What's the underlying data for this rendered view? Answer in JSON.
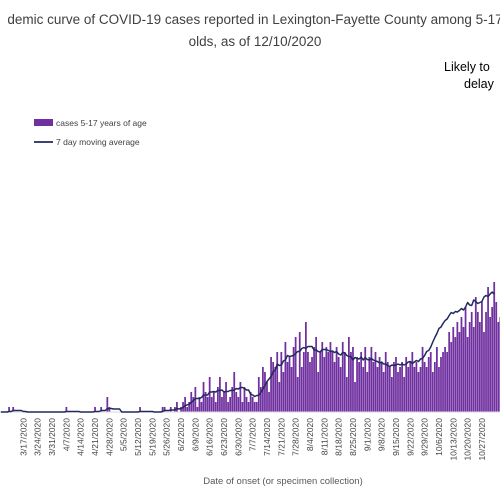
{
  "chart_data": {
    "type": "bar",
    "title_line1": "demic curve of COVID-19 cases reported in Lexington-Fayette County among 5-17",
    "title_line2": "olds, as of 12/10/2020",
    "annotation_line1": "Likely to",
    "annotation_line2": "delay",
    "xlabel": "Date of onset (or specimen collection)",
    "ylabel": "",
    "legend": {
      "placement": "upper-left",
      "bar_label": "cases 5-17 years of age",
      "line_label": "7 day moving average"
    },
    "colors": {
      "bar": "#7030a0",
      "line": "#1f2a5c",
      "axis": "#d9d9d9"
    },
    "ylim": [
      0,
      30
    ],
    "tick_labels": [
      "3/17/2020",
      "3/24/2020",
      "3/31/2020",
      "4/7/2020",
      "4/14/2020",
      "4/21/2020",
      "4/28/2020",
      "5/5/2020",
      "5/12/2020",
      "5/19/2020",
      "5/26/2020",
      "6/2/2020",
      "6/9/2020",
      "6/16/2020",
      "6/23/2020",
      "6/30/2020",
      "7/7/2020",
      "7/14/2020",
      "7/21/2020",
      "7/28/2020",
      "8/4/2020",
      "8/11/2020",
      "8/18/2020",
      "8/25/2020",
      "9/1/2020",
      "9/8/2020",
      "9/15/2020",
      "9/22/2020",
      "9/29/2020",
      "10/6/2020",
      "10/13/2020",
      "10/20/2020",
      "10/27/2020"
    ],
    "series": [
      {
        "name": "cases 5-17 years of age",
        "kind": "bar",
        "values": [
          0,
          0,
          0,
          0,
          1,
          0,
          1,
          0,
          0,
          0,
          0,
          0,
          0,
          0,
          0,
          0,
          0,
          0,
          0,
          0,
          0,
          0,
          0,
          0,
          0,
          0,
          0,
          0,
          0,
          0,
          0,
          0,
          1,
          0,
          0,
          0,
          0,
          0,
          0,
          0,
          0,
          0,
          0,
          0,
          0,
          0,
          1,
          0,
          0,
          1,
          0,
          0,
          3,
          1,
          0,
          0,
          0,
          0,
          0,
          0,
          0,
          0,
          0,
          0,
          0,
          0,
          0,
          0,
          1,
          0,
          0,
          0,
          0,
          0,
          0,
          0,
          0,
          0,
          0,
          1,
          1,
          0,
          0,
          1,
          0,
          1,
          2,
          0,
          1,
          2,
          3,
          1,
          2,
          4,
          3,
          5,
          1,
          3,
          2,
          6,
          4,
          3,
          7,
          3,
          4,
          2,
          5,
          7,
          3,
          4,
          6,
          2,
          3,
          5,
          8,
          4,
          3,
          6,
          2,
          5,
          3,
          2,
          4,
          3,
          2,
          2,
          7,
          5,
          9,
          8,
          6,
          4,
          11,
          10,
          9,
          12,
          6,
          12,
          8,
          14,
          10,
          11,
          9,
          13,
          15,
          7,
          16,
          9,
          12,
          18,
          12,
          10,
          11,
          13,
          15,
          8,
          12,
          14,
          11,
          13,
          12,
          14,
          12,
          10,
          13,
          11,
          9,
          14,
          12,
          7,
          15,
          12,
          13,
          6,
          11,
          10,
          12,
          9,
          13,
          8,
          11,
          13,
          10,
          12,
          9,
          11,
          10,
          8,
          12,
          10,
          9,
          7,
          10,
          11,
          8,
          9,
          10,
          7,
          11,
          9,
          10,
          12,
          9,
          10,
          8,
          9,
          13,
          10,
          9,
          11,
          12,
          8,
          10,
          13,
          9,
          11,
          12,
          13,
          12,
          16,
          14,
          17,
          15,
          18,
          16,
          19,
          17,
          21,
          15,
          18,
          20,
          17,
          23,
          20,
          18,
          22,
          16,
          20,
          25,
          19,
          21,
          26,
          22,
          18,
          19,
          24,
          27,
          23,
          21,
          26,
          24,
          20
        ]
      },
      {
        "name": "7 day moving average",
        "kind": "line",
        "values": [
          0,
          0,
          0,
          0,
          0.1,
          0.1,
          0.3,
          0.3,
          0.3,
          0.3,
          0.3,
          0.1,
          0.1,
          0,
          0,
          0,
          0,
          0,
          0,
          0,
          0,
          0,
          0,
          0,
          0,
          0,
          0,
          0,
          0,
          0,
          0,
          0,
          0.1,
          0.1,
          0.1,
          0.1,
          0.1,
          0.1,
          0.1,
          0,
          0,
          0,
          0,
          0,
          0,
          0,
          0.1,
          0.1,
          0.1,
          0.3,
          0.3,
          0.3,
          0.7,
          0.7,
          0.7,
          0.6,
          0.6,
          0.6,
          0.6,
          0,
          0,
          0,
          0,
          0,
          0,
          0,
          0,
          0,
          0.1,
          0.1,
          0.1,
          0.1,
          0.1,
          0.1,
          0.1,
          0,
          0,
          0,
          0,
          0.1,
          0.3,
          0.3,
          0.3,
          0.4,
          0.4,
          0.4,
          0.7,
          0.6,
          0.7,
          0.9,
          1.3,
          1.4,
          1.6,
          1.9,
          2.3,
          2.7,
          2.7,
          2.7,
          2.9,
          3.4,
          3.4,
          3.4,
          4,
          4,
          4.1,
          4,
          4.3,
          4.3,
          4.4,
          4,
          4.1,
          4.1,
          4.3,
          4.3,
          4.4,
          4.7,
          4.6,
          4.9,
          4.9,
          4.7,
          4.4,
          4.4,
          3.6,
          3.4,
          3.1,
          3.3,
          3.3,
          3.9,
          4.6,
          5.3,
          6.1,
          6.6,
          7.1,
          8.1,
          8.4,
          9.6,
          9.3,
          9.4,
          10.2,
          10.4,
          11.3,
          11.1,
          11.2,
          11.3,
          11.7,
          12.1,
          12.1,
          12.7,
          12.9,
          12.7,
          13.1,
          13.1,
          13.1,
          12.4,
          12.4,
          12.1,
          12,
          12.5,
          12.5,
          12.5,
          12.3,
          12.1,
          12.2,
          11.9,
          12.1,
          11.6,
          11.4,
          11.9,
          11.8,
          11.3,
          11.1,
          11.1,
          10.4,
          10.9,
          10.7,
          10.6,
          11,
          10.4,
          10.9,
          10.5,
          10.4,
          10.7,
          10.4,
          10.2,
          10.1,
          9.8,
          10,
          9.6,
          9.6,
          9.3,
          9.1,
          9.4,
          9.3,
          9.4,
          9.6,
          9.4,
          9.6,
          9.4,
          9.6,
          10,
          10.1,
          9.7,
          10,
          10.3,
          10.1,
          10.6,
          10.7,
          11.3,
          12.1,
          12.3,
          13,
          14,
          14.9,
          15.7,
          16.7,
          17,
          17.7,
          18.3,
          18.6,
          19.3,
          19.9,
          19.7,
          20.1,
          20,
          20.3,
          20.7,
          20.4,
          21,
          21.9,
          21.4,
          21.3,
          22.4,
          22.1,
          21.7,
          21.9,
          22.1,
          23,
          23.3,
          23.1,
          23.6,
          24,
          23.6
        ]
      }
    ]
  }
}
